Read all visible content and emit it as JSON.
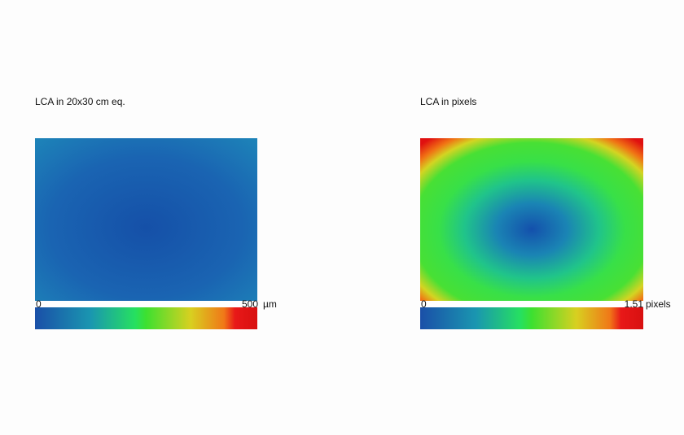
{
  "panels": [
    {
      "title": "LCA in 20x30 cm eq.",
      "scale": {
        "min": "0",
        "max": "500",
        "unit": "µm"
      }
    },
    {
      "title": "LCA in pixels",
      "scale": {
        "min": "0",
        "max": "1.51",
        "unit": "pixels"
      }
    }
  ]
}
